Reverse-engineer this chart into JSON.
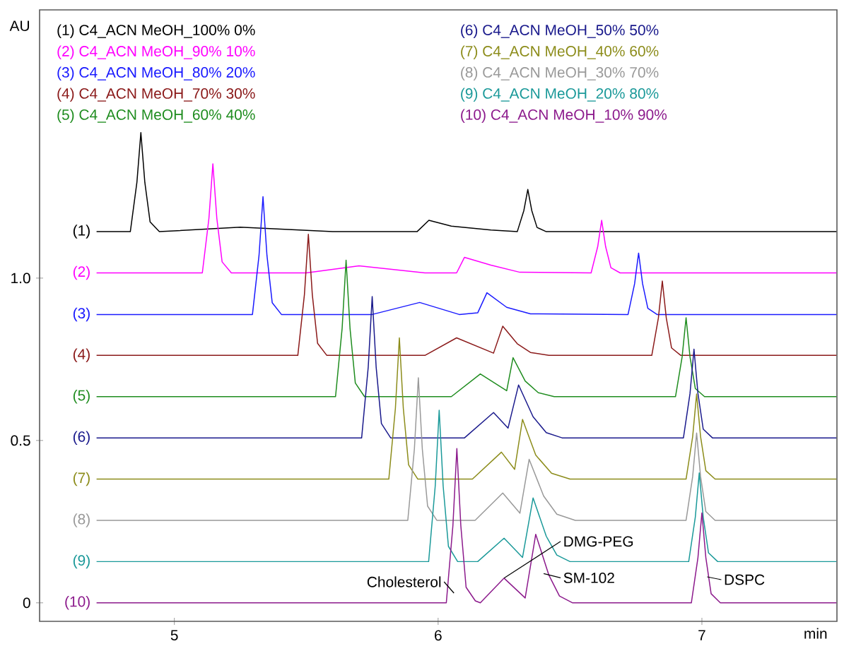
{
  "chart_data": {
    "type": "line",
    "xlabel": "min",
    "ylabel": "AU",
    "xlim": [
      4.489,
      7.512
    ],
    "ylim": [
      -0.057,
      1.826
    ],
    "xticks": [
      5,
      6,
      7
    ],
    "yticks": [
      0,
      0.5,
      {
        "value": 1,
        "label": "1.0"
      }
    ],
    "legend": "top left",
    "marker": "none",
    "line_style": "solid",
    "series": [
      {
        "name": "(1) C4_ACN MeOH_100% 0%",
        "color": "#000000",
        "x": [
          4.705,
          4.833,
          4.858,
          4.873,
          4.888,
          4.908,
          4.943,
          5.25,
          5.6,
          5.92,
          5.965,
          6.05,
          6.2,
          6.3,
          6.325,
          6.34,
          6.355,
          6.375,
          6.41,
          7.51
        ],
        "values": [
          1.143,
          1.143,
          1.295,
          1.448,
          1.295,
          1.173,
          1.143,
          1.157,
          1.143,
          1.143,
          1.178,
          1.16,
          1.148,
          1.143,
          1.208,
          1.273,
          1.208,
          1.156,
          1.143,
          1.143
        ]
      },
      {
        "name": "(2) C4_ACN MeOH_90% 10%",
        "color": "#ff00ff",
        "x": [
          4.705,
          5.106,
          5.131,
          5.146,
          5.161,
          5.181,
          5.216,
          5.5,
          5.7,
          5.95,
          6.07,
          6.1,
          6.2,
          6.31,
          6.58,
          6.605,
          6.62,
          6.635,
          6.655,
          6.69,
          7.51
        ],
        "values": [
          1.016,
          1.016,
          1.184,
          1.352,
          1.184,
          1.05,
          1.016,
          1.016,
          1.038,
          1.016,
          1.016,
          1.064,
          1.04,
          1.018,
          1.016,
          1.097,
          1.178,
          1.097,
          1.032,
          1.016,
          1.016
        ]
      },
      {
        "name": "(3) C4_ACN MeOH_80% 20%",
        "color": "#1a1aff",
        "x": [
          4.705,
          5.296,
          5.321,
          5.336,
          5.351,
          5.371,
          5.406,
          5.75,
          5.93,
          6.08,
          6.15,
          6.185,
          6.26,
          6.35,
          6.72,
          6.745,
          6.76,
          6.775,
          6.795,
          6.83,
          7.51
        ],
        "values": [
          0.888,
          0.888,
          1.07,
          1.251,
          1.07,
          0.924,
          0.888,
          0.888,
          0.925,
          0.888,
          0.893,
          0.955,
          0.91,
          0.89,
          0.888,
          0.983,
          1.077,
          0.983,
          0.907,
          0.888,
          0.888
        ]
      },
      {
        "name": "(4) C4_ACN MeOH_70% 30%",
        "color": "#8b1a1a",
        "x": [
          4.705,
          5.468,
          5.493,
          5.508,
          5.523,
          5.543,
          5.578,
          5.95,
          6.07,
          6.21,
          6.245,
          6.3,
          6.35,
          6.42,
          6.81,
          6.835,
          6.85,
          6.865,
          6.885,
          6.92,
          7.51
        ],
        "values": [
          0.762,
          0.762,
          0.949,
          1.135,
          0.949,
          0.799,
          0.762,
          0.762,
          0.816,
          0.769,
          0.852,
          0.798,
          0.771,
          0.762,
          0.762,
          0.877,
          0.991,
          0.877,
          0.785,
          0.762,
          0.762
        ]
      },
      {
        "name": "(5) C4_ACN MeOH_60% 40%",
        "color": "#1e8c1e",
        "x": [
          4.705,
          5.611,
          5.636,
          5.651,
          5.666,
          5.686,
          5.721,
          6.05,
          6.16,
          6.26,
          6.284,
          6.33,
          6.38,
          6.44,
          6.9,
          6.925,
          6.94,
          6.955,
          6.975,
          7.01,
          7.51
        ],
        "values": [
          0.635,
          0.635,
          0.845,
          1.055,
          0.845,
          0.677,
          0.635,
          0.635,
          0.705,
          0.653,
          0.755,
          0.683,
          0.647,
          0.635,
          0.635,
          0.757,
          0.878,
          0.757,
          0.66,
          0.635,
          0.635
        ]
      },
      {
        "name": "(6) C4_ACN MeOH_50% 50%",
        "color": "#1a1a8c",
        "x": [
          4.705,
          5.71,
          5.735,
          5.75,
          5.765,
          5.785,
          5.82,
          6.1,
          6.21,
          6.265,
          6.305,
          6.36,
          6.41,
          6.47,
          6.93,
          6.955,
          6.97,
          6.985,
          7.005,
          7.04,
          7.51
        ],
        "values": [
          0.508,
          0.508,
          0.726,
          0.943,
          0.726,
          0.552,
          0.508,
          0.508,
          0.586,
          0.538,
          0.671,
          0.573,
          0.524,
          0.508,
          0.508,
          0.645,
          0.781,
          0.645,
          0.535,
          0.508,
          0.508
        ]
      },
      {
        "name": "(7) C4_ACN MeOH_40% 60%",
        "color": "#8c8c1a",
        "x": [
          4.705,
          5.813,
          5.838,
          5.853,
          5.868,
          5.888,
          5.923,
          6.13,
          6.24,
          6.29,
          6.32,
          6.37,
          6.43,
          6.5,
          6.94,
          6.965,
          6.98,
          6.995,
          7.015,
          7.05,
          7.51
        ],
        "values": [
          0.381,
          0.381,
          0.599,
          0.816,
          0.599,
          0.425,
          0.381,
          0.381,
          0.464,
          0.411,
          0.565,
          0.455,
          0.399,
          0.381,
          0.381,
          0.512,
          0.643,
          0.512,
          0.407,
          0.381,
          0.381
        ]
      },
      {
        "name": "(8) C4_ACN MeOH_30% 70%",
        "color": "#999999",
        "x": [
          4.705,
          5.885,
          5.91,
          5.925,
          5.94,
          5.96,
          5.995,
          6.14,
          6.245,
          6.31,
          6.345,
          6.4,
          6.45,
          6.52,
          6.94,
          6.965,
          6.98,
          6.995,
          7.015,
          7.05,
          7.51
        ],
        "values": [
          0.254,
          0.254,
          0.474,
          0.693,
          0.474,
          0.298,
          0.254,
          0.254,
          0.338,
          0.276,
          0.442,
          0.329,
          0.273,
          0.254,
          0.254,
          0.389,
          0.523,
          0.389,
          0.281,
          0.254,
          0.254
        ]
      },
      {
        "name": "(9) C4_ACN MeOH_20% 80%",
        "color": "#1a9999",
        "x": [
          4.705,
          5.964,
          5.989,
          6.004,
          6.019,
          6.039,
          6.074,
          6.15,
          6.25,
          6.32,
          6.36,
          6.41,
          6.45,
          6.5,
          6.95,
          6.975,
          6.99,
          7.005,
          7.025,
          7.06,
          7.51
        ],
        "values": [
          0.127,
          0.127,
          0.36,
          0.593,
          0.36,
          0.174,
          0.127,
          0.127,
          0.199,
          0.14,
          0.323,
          0.205,
          0.147,
          0.127,
          0.127,
          0.264,
          0.4,
          0.264,
          0.154,
          0.127,
          0.127
        ]
      },
      {
        "name": "(10) C4_ACN MeOH_10% 90%",
        "color": "#8c1a8c",
        "x": [
          4.705,
          6.031,
          6.056,
          6.071,
          6.086,
          6.106,
          6.141,
          6.16,
          6.25,
          6.33,
          6.37,
          6.42,
          6.46,
          6.51,
          6.96,
          6.985,
          7.0,
          7.015,
          7.035,
          7.07,
          7.51
        ],
        "values": [
          0,
          0,
          0.238,
          0.475,
          0.238,
          0.048,
          0.006,
          0,
          0.076,
          0.015,
          0.211,
          0.085,
          0.021,
          0,
          0,
          0.139,
          0.277,
          0.139,
          0.028,
          0,
          0
        ]
      }
    ],
    "annotations": [
      "(1)",
      "(2)",
      "(3)",
      "(4)",
      "(5)",
      "(6)",
      "(7)",
      "(8)",
      "(9)",
      "(10)",
      {
        "text": "Cholesterol",
        "x": 6.06,
        "y": 0.03
      },
      {
        "text": "DMG-PEG",
        "x": 6.25,
        "y": 0.076
      },
      {
        "text": "SM-102",
        "x": 6.4,
        "y": 0.09
      },
      {
        "text": "DSPC",
        "x": 7.02,
        "y": 0.08
      }
    ]
  }
}
